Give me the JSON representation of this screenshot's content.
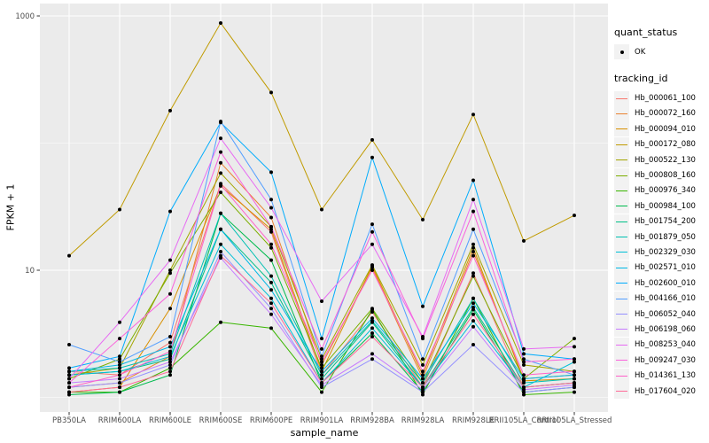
{
  "legend": {
    "quant_status": {
      "title": "quant_status",
      "items": [
        {
          "label": "OK",
          "marker": "black-point",
          "color": "#000000"
        }
      ]
    },
    "tracking": {
      "title": "tracking_id"
    }
  },
  "chart_data": {
    "type": "line",
    "title": "",
    "xlabel": "sample_name",
    "ylabel": "FPKM + 1",
    "y_scale": "log10",
    "ylim": [
      1,
      1100
    ],
    "grid": true,
    "legend_position": "right",
    "panel_background": "#EBEBEB",
    "gridline_color": "#FFFFFF",
    "point_color": "#000000",
    "tick_label_color": "#4D4D4D",
    "y_major_ticks": [
      {
        "label": "1000",
        "value": 1000
      },
      {
        "label": "10",
        "value": 10
      }
    ],
    "y_minor_gridlines": [
      100,
      1
    ],
    "categories": [
      "PB350LA",
      "RRIM600LA",
      "RRIM600LE",
      "RRIM600SE",
      "RRIM600PE",
      "RRIM901LA",
      "RRIM928BA",
      "RRIM928LA",
      "RRIM928LE",
      "RRII105LA_Control",
      "RRII105LA_Stressed"
    ],
    "series": [
      {
        "name": "Hb_000061_100",
        "color": "#F8766D",
        "values": [
          1.6,
          1.5,
          2.7,
          48,
          20,
          1.5,
          4.7,
          1.2,
          9.5,
          1.2,
          1.3
        ]
      },
      {
        "name": "Hb_000072_160",
        "color": "#EA8331",
        "values": [
          1.2,
          1.3,
          2.1,
          70,
          26,
          1.8,
          10.5,
          1.4,
          14,
          1.4,
          1.5
        ]
      },
      {
        "name": "Hb_000094_010",
        "color": "#D89000",
        "values": [
          1.1,
          1.2,
          5.0,
          46,
          21,
          1.6,
          10.8,
          1.5,
          15,
          1.35,
          1.4
        ]
      },
      {
        "name": "Hb_000172_080",
        "color": "#C09B00",
        "values": [
          13,
          30,
          180,
          880,
          250,
          30,
          106,
          25,
          168,
          17,
          27
        ]
      },
      {
        "name": "Hb_000522_130",
        "color": "#A3A500",
        "values": [
          1.5,
          1.7,
          10,
          58,
          22,
          2.0,
          11,
          1.8,
          16,
          1.8,
          1.6
        ]
      },
      {
        "name": "Hb_000808_160",
        "color": "#7CAE00",
        "values": [
          1.4,
          2.0,
          9.5,
          41,
          15,
          1.7,
          5.0,
          1.3,
          9.0,
          1.4,
          2.9
        ]
      },
      {
        "name": "Hb_000976_340",
        "color": "#39B600",
        "values": [
          1.1,
          1.1,
          1.7,
          3.9,
          3.5,
          1.1,
          4.9,
          1.05,
          6.0,
          1.05,
          1.1
        ]
      },
      {
        "name": "Hb_000984_100",
        "color": "#00BB4E",
        "values": [
          1.05,
          1.1,
          1.5,
          28,
          12,
          1.3,
          3.2,
          1.1,
          4.9,
          1.1,
          1.2
        ]
      },
      {
        "name": "Hb_001754_200",
        "color": "#00C087",
        "values": [
          1.5,
          1.6,
          2.0,
          21,
          8.0,
          1.4,
          3.9,
          1.2,
          5.1,
          1.2,
          1.3
        ]
      },
      {
        "name": "Hb_001879_050",
        "color": "#00C0B2",
        "values": [
          1.6,
          1.7,
          2.2,
          28,
          9.0,
          1.5,
          4.0,
          1.3,
          6.0,
          1.3,
          1.4
        ]
      },
      {
        "name": "Hb_002329_030",
        "color": "#00BFD6",
        "values": [
          1.5,
          1.6,
          2.1,
          16,
          6.0,
          1.3,
          3.5,
          1.2,
          4.0,
          1.2,
          1.9
        ]
      },
      {
        "name": "Hb_002571_010",
        "color": "#00B8E5",
        "values": [
          1.6,
          1.8,
          2.5,
          21,
          7.0,
          1.6,
          4.2,
          1.4,
          5.5,
          1.4,
          1.5
        ]
      },
      {
        "name": "Hb_002600_010",
        "color": "#00ACFC",
        "values": [
          1.7,
          2.1,
          29,
          145,
          59,
          2.9,
          77,
          5.2,
          51,
          2.2,
          2.0
        ]
      },
      {
        "name": "Hb_004166_010",
        "color": "#529EFF",
        "values": [
          2.6,
          1.9,
          3.0,
          148,
          36,
          2.1,
          23,
          2.0,
          21,
          2.0,
          1.5
        ]
      },
      {
        "name": "Hb_006052_040",
        "color": "#9590FF",
        "values": [
          1.2,
          1.3,
          1.8,
          14,
          5.0,
          1.2,
          2.0,
          1.1,
          2.6,
          1.1,
          1.2
        ]
      },
      {
        "name": "Hb_006198_060",
        "color": "#C77CFF",
        "values": [
          1.3,
          1.4,
          1.9,
          12.5,
          4.5,
          1.25,
          2.2,
          1.15,
          3.6,
          1.15,
          1.25
        ]
      },
      {
        "name": "Hb_008253_040",
        "color": "#E76BF3",
        "values": [
          1.4,
          3.9,
          12,
          109,
          31,
          5.7,
          16,
          3.0,
          36,
          2.4,
          2.5
        ]
      },
      {
        "name": "Hb_009247_030",
        "color": "#FA62DB",
        "values": [
          1.3,
          2.9,
          6.5,
          85,
          22,
          2.4,
          20,
          2.9,
          29,
          1.9,
          2.0
        ]
      },
      {
        "name": "Hb_014361_130",
        "color": "#FF61C9",
        "values": [
          1.2,
          1.5,
          2.3,
          47,
          16,
          1.9,
          10,
          1.6,
          13,
          1.5,
          1.6
        ]
      },
      {
        "name": "Hb_017604_020",
        "color": "#FF6A98",
        "values": [
          1.1,
          1.2,
          1.6,
          13,
          5.5,
          1.3,
          3.0,
          1.2,
          4.5,
          1.2,
          1.3
        ]
      }
    ]
  }
}
